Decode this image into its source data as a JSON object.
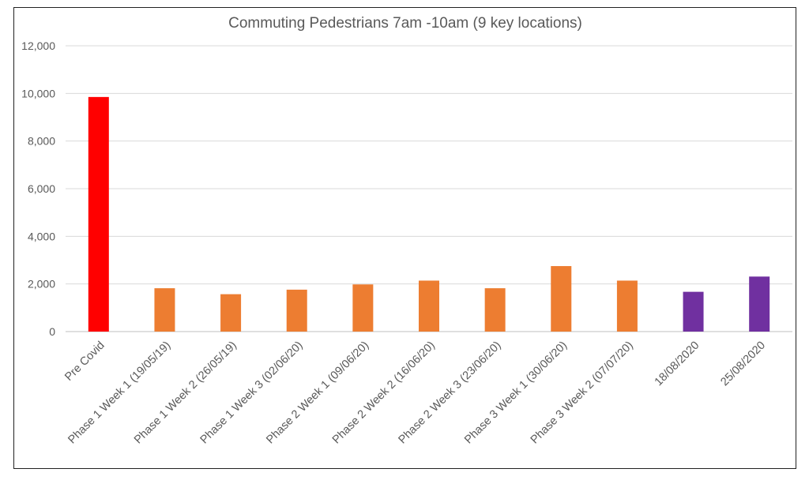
{
  "chart_data": {
    "type": "bar",
    "title": "Commuting Pedestrians 7am -10am (9 key locations)",
    "xlabel": "",
    "ylabel": "",
    "ylim": [
      0,
      12000
    ],
    "yticks": [
      "0",
      "2,000",
      "4,000",
      "6,000",
      "8,000",
      "10,000",
      "12,000"
    ],
    "grid": true,
    "categories": [
      "Pre Covid",
      "Phase 1 Week 1 (19/05/19)",
      "Phase 1 Week 2 (26/05/19)",
      "Phase 1 Week 3 (02/06/20)",
      "Phase 2 Week 1 (09/06/20)",
      "Phase 2 Week 2 (16/06/20)",
      "Phase 2 Week 3 (23/06/20)",
      "Phase 3 Week 1 (30/06/20)",
      "Phase 3 Week 2 (07/07/20)",
      "18/08/2020",
      "25/08/2020"
    ],
    "values": [
      9850,
      1820,
      1570,
      1760,
      1980,
      2140,
      1820,
      2750,
      2140,
      1670,
      2310
    ],
    "colors": [
      "#ff0000",
      "#ed7d31",
      "#ed7d31",
      "#ed7d31",
      "#ed7d31",
      "#ed7d31",
      "#ed7d31",
      "#ed7d31",
      "#ed7d31",
      "#7030a0",
      "#7030a0"
    ]
  }
}
